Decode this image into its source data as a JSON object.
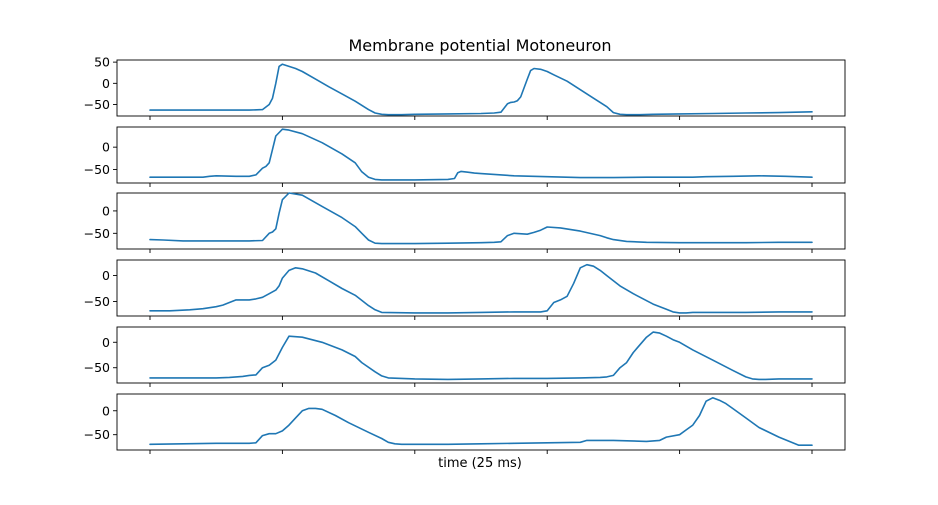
{
  "figure": {
    "title": "Membrane potential Motoneuron",
    "xlabel": "time (25 ms)"
  },
  "chart_data": {
    "type": "line",
    "title": "Membrane potential Motoneuron",
    "xlabel": "time (25 ms)",
    "xlim": [
      0,
      1000
    ],
    "series_color": "#1f77b4",
    "panels": [
      {
        "ylim": [
          -77,
          55
        ],
        "yticks": [
          50,
          0,
          -50
        ],
        "x": [
          0,
          50,
          100,
          150,
          170,
          180,
          185,
          190,
          195,
          200,
          210,
          220,
          230,
          250,
          270,
          290,
          310,
          330,
          340,
          350,
          360,
          370,
          380,
          400,
          450,
          500,
          520,
          530,
          540,
          545,
          550,
          555,
          560,
          570,
          575,
          580,
          590,
          600,
          610,
          630,
          650,
          670,
          690,
          700,
          710,
          720,
          730,
          740,
          760,
          800,
          850,
          900,
          950,
          1000
        ],
        "y": [
          -63,
          -63,
          -63,
          -63,
          -62,
          -50,
          -35,
          0,
          40,
          45,
          40,
          35,
          28,
          10,
          -8,
          -25,
          -42,
          -62,
          -70,
          -73,
          -74,
          -74,
          -74,
          -73,
          -72,
          -71,
          -70,
          -68,
          -48,
          -45,
          -44,
          -41,
          -32,
          10,
          30,
          35,
          33,
          28,
          20,
          5,
          -15,
          -35,
          -55,
          -69,
          -73,
          -74,
          -74,
          -74,
          -73,
          -72,
          -71,
          -70,
          -69,
          -67
        ]
      },
      {
        "ylim": [
          -80,
          45
        ],
        "yticks": [
          0,
          -50
        ],
        "x": [
          0,
          50,
          80,
          90,
          100,
          130,
          150,
          160,
          170,
          175,
          180,
          185,
          190,
          200,
          210,
          230,
          260,
          290,
          310,
          320,
          330,
          340,
          350,
          400,
          450,
          460,
          465,
          470,
          480,
          490,
          500,
          550,
          600,
          650,
          700,
          750,
          800,
          820,
          840,
          880,
          920,
          960,
          1000
        ],
        "y": [
          -67,
          -67,
          -67,
          -65,
          -64,
          -65,
          -65,
          -62,
          -47,
          -43,
          -35,
          -5,
          25,
          40,
          38,
          30,
          10,
          -15,
          -35,
          -55,
          -67,
          -72,
          -73,
          -73,
          -72,
          -70,
          -57,
          -54,
          -56,
          -58,
          -59,
          -64,
          -66,
          -68,
          -68,
          -67,
          -67,
          -67,
          -66,
          -65,
          -64,
          -65,
          -67
        ]
      },
      {
        "ylim": [
          -85,
          40
        ],
        "yticks": [
          0,
          -50
        ],
        "x": [
          0,
          20,
          50,
          100,
          150,
          170,
          180,
          185,
          190,
          195,
          200,
          210,
          230,
          260,
          290,
          310,
          320,
          330,
          340,
          350,
          400,
          450,
          500,
          520,
          530,
          540,
          550,
          570,
          580,
          590,
          600,
          620,
          650,
          680,
          690,
          700,
          720,
          750,
          800,
          850,
          900,
          950,
          1000
        ],
        "y": [
          -64,
          -65,
          -67,
          -67,
          -67,
          -66,
          -50,
          -47,
          -40,
          -5,
          25,
          40,
          35,
          10,
          -15,
          -35,
          -50,
          -65,
          -72,
          -73,
          -73,
          -72,
          -71,
          -70,
          -69,
          -55,
          -50,
          -52,
          -48,
          -43,
          -36,
          -38,
          -45,
          -55,
          -60,
          -64,
          -68,
          -70,
          -71,
          -71,
          -71,
          -70,
          -70
        ]
      },
      {
        "ylim": [
          -78,
          30
        ],
        "yticks": [
          0,
          -50
        ],
        "x": [
          0,
          30,
          60,
          80,
          100,
          110,
          120,
          130,
          150,
          160,
          170,
          180,
          190,
          195,
          200,
          210,
          220,
          230,
          250,
          270,
          290,
          310,
          320,
          330,
          340,
          350,
          400,
          450,
          500,
          550,
          590,
          600,
          610,
          620,
          630,
          640,
          650,
          660,
          670,
          680,
          690,
          700,
          710,
          730,
          760,
          780,
          790,
          800,
          810,
          820,
          850,
          900,
          950,
          1000
        ],
        "y": [
          -68,
          -68,
          -66,
          -64,
          -60,
          -57,
          -52,
          -47,
          -47,
          -45,
          -42,
          -35,
          -28,
          -20,
          -5,
          10,
          15,
          13,
          5,
          -10,
          -25,
          -38,
          -48,
          -58,
          -66,
          -71,
          -72,
          -72,
          -71,
          -70,
          -70,
          -68,
          -52,
          -47,
          -40,
          -15,
          15,
          21,
          18,
          10,
          0,
          -10,
          -20,
          -35,
          -55,
          -65,
          -70,
          -72,
          -72,
          -71,
          -71,
          -71,
          -70,
          -70
        ]
      },
      {
        "ylim": [
          -80,
          30
        ],
        "yticks": [
          0,
          -50
        ],
        "x": [
          0,
          50,
          100,
          120,
          140,
          150,
          160,
          170,
          180,
          190,
          200,
          210,
          230,
          260,
          290,
          310,
          320,
          340,
          350,
          360,
          400,
          450,
          500,
          550,
          600,
          650,
          680,
          690,
          700,
          710,
          720,
          730,
          740,
          750,
          760,
          770,
          780,
          790,
          800,
          820,
          850,
          880,
          900,
          910,
          920,
          930,
          950,
          1000
        ],
        "y": [
          -70,
          -70,
          -70,
          -69,
          -67,
          -65,
          -64,
          -50,
          -45,
          -35,
          -10,
          12,
          10,
          0,
          -15,
          -28,
          -40,
          -58,
          -66,
          -70,
          -72,
          -73,
          -72,
          -71,
          -71,
          -70,
          -69,
          -68,
          -65,
          -50,
          -40,
          -20,
          -5,
          10,
          20,
          18,
          12,
          5,
          0,
          -15,
          -35,
          -55,
          -68,
          -72,
          -73,
          -73,
          -72,
          -72
        ]
      },
      {
        "ylim": [
          -82,
          35
        ],
        "yticks": [
          0,
          -50
        ],
        "x": [
          0,
          50,
          100,
          150,
          160,
          170,
          180,
          190,
          200,
          210,
          220,
          230,
          240,
          250,
          260,
          280,
          300,
          330,
          350,
          360,
          370,
          380,
          400,
          450,
          500,
          550,
          600,
          650,
          660,
          700,
          750,
          770,
          780,
          800,
          810,
          820,
          830,
          840,
          850,
          860,
          870,
          880,
          890,
          900,
          920,
          950,
          980,
          1000
        ],
        "y": [
          -70,
          -69,
          -68,
          -68,
          -67,
          -52,
          -48,
          -48,
          -42,
          -30,
          -15,
          0,
          5,
          5,
          3,
          -10,
          -25,
          -45,
          -58,
          -66,
          -69,
          -70,
          -70,
          -70,
          -69,
          -68,
          -67,
          -66,
          -62,
          -62,
          -64,
          -62,
          -55,
          -50,
          -40,
          -30,
          -10,
          20,
          27,
          22,
          15,
          5,
          -5,
          -15,
          -35,
          -55,
          -72,
          -72
        ]
      }
    ]
  }
}
